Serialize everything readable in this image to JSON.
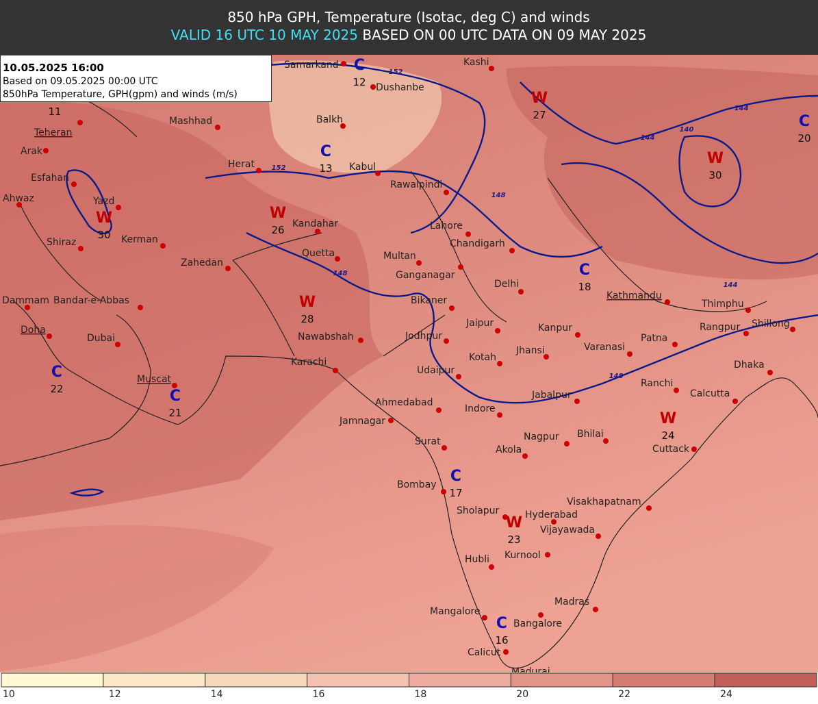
{
  "header": {
    "title": "850 hPa GPH, Temperature (Isotac, deg C) and winds",
    "valid": "VALID 16 UTC 10 MAY 2025",
    "based": "BASED ON 00 UTC DATA ON 09 MAY 2025"
  },
  "info_box": {
    "date": "10.05.2025 16:00",
    "based_on": "Based on 09.05.2025 00:00 UTC",
    "description": "850hPa Temperature, GPH(gpm) and winds (m/s)"
  },
  "cities": [
    "Samarkand",
    "Dushanbe",
    "Kashi",
    "Mashhad",
    "Teheran",
    "Balkh",
    "Arak",
    "Herat",
    "Kabul",
    "Rawalpindi",
    "Esfahan",
    "Ahwaz",
    "Yazd",
    "Kandahar",
    "Lahore",
    "Chandigarh",
    "Shiraz",
    "Kerman",
    "Quetta",
    "Multan",
    "Zahedan",
    "Ganganagar",
    "Delhi",
    "Dammam",
    "Bandar-e-Abbas",
    "Bikaner",
    "Kathmandu",
    "Thimphu",
    "Jaipur",
    "Kanpur",
    "Shillong",
    "Doha",
    "Rangpur",
    "Dubai",
    "Nawabshah",
    "Jodhpur",
    "Patna",
    "Varanasi",
    "Jhansi",
    "Kotah",
    "Karachi",
    "Dhaka",
    "Udaipur",
    "Muscat",
    "Ranchi",
    "Jabalpur",
    "Calcutta",
    "Ahmedabad",
    "Indore",
    "Jamnagar",
    "Nagpur",
    "Bhilai",
    "Cuttack",
    "Surat",
    "Akola",
    "Bombay",
    "Visakhapatnam",
    "Sholapur",
    "Hyderabad",
    "Vijayawada",
    "Kurnool",
    "Hubli",
    "Madras",
    "Mangalore",
    "Bangalore",
    "Calicut",
    "Madurai"
  ],
  "pressure_centers": [
    {
      "label": "W",
      "value": 27
    },
    {
      "label": "C",
      "value": 20
    },
    {
      "label": "W",
      "value": 30
    },
    {
      "label": "C",
      "value": 12
    },
    {
      "label": "C",
      "value": 13
    },
    {
      "label": "W",
      "value": 26
    },
    {
      "label": "W",
      "value": 30
    },
    {
      "label": "W",
      "value": 28
    },
    {
      "label": "C",
      "value": 18
    },
    {
      "label": "C",
      "value": 22
    },
    {
      "label": "C",
      "value": 21
    },
    {
      "label": "W",
      "value": 24
    },
    {
      "label": "C",
      "value": 17
    },
    {
      "label": "W",
      "value": 23
    },
    {
      "label": "C",
      "value": 16
    }
  ],
  "isolated_values": [
    11
  ],
  "contour_labels": [
    152,
    152,
    148,
    148,
    144,
    140,
    144,
    144,
    148
  ],
  "colorbar": {
    "ticks": [
      10,
      12,
      14,
      16,
      18,
      20,
      22,
      24
    ],
    "colors": [
      "#fff8d2",
      "#fbe8c8",
      "#f8d8bd",
      "#f4c2b0",
      "#eeab9f",
      "#e3958a",
      "#d57c73",
      "#c35f5a"
    ]
  }
}
